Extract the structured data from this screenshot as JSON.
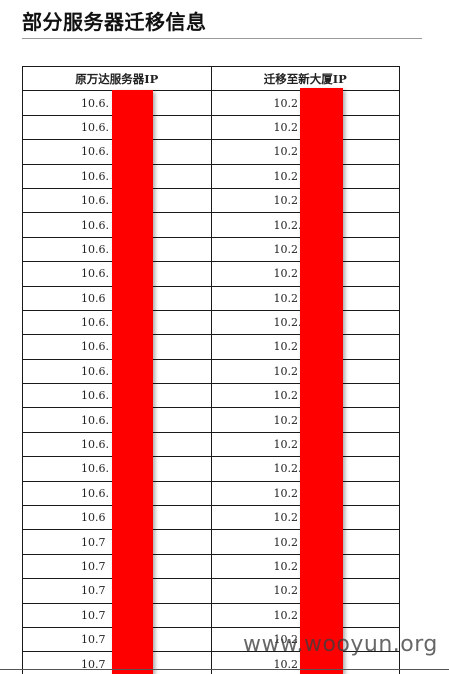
{
  "page": {
    "title": "部分服务器迁移信息"
  },
  "table": {
    "headers": [
      "原万达服务器IP",
      "迁移至新大厦IP"
    ],
    "rows": [
      [
        "10.6.",
        "10.2"
      ],
      [
        "10.6.",
        "10.2"
      ],
      [
        "10.6.",
        "10.2"
      ],
      [
        "10.6.",
        "10.2"
      ],
      [
        "10.6.",
        "10.2"
      ],
      [
        "10.6.",
        "10.2."
      ],
      [
        "10.6.",
        "10.2"
      ],
      [
        "10.6.",
        "10.2"
      ],
      [
        "10.6",
        "10.2"
      ],
      [
        "10.6.",
        "10.2."
      ],
      [
        "10.6.",
        "10.2"
      ],
      [
        "10.6.",
        "10.2"
      ],
      [
        "10.6.",
        "10.2"
      ],
      [
        "10.6.",
        "10.2"
      ],
      [
        "10.6.",
        "10.2"
      ],
      [
        "10.6.",
        "10.2."
      ],
      [
        "10.6.",
        "10.2"
      ],
      [
        "10.6",
        "10.2"
      ],
      [
        "10.7",
        "10.2"
      ],
      [
        "10.7",
        "10.2"
      ],
      [
        "10.7",
        "10.2"
      ],
      [
        "10.7",
        "10.2"
      ],
      [
        "10.7",
        "10.2"
      ],
      [
        "10.7",
        "10.2"
      ]
    ]
  },
  "colors": {
    "redaction": "#ff0000",
    "border": "#1a1a1a"
  },
  "watermark": "www.wooyun.org"
}
